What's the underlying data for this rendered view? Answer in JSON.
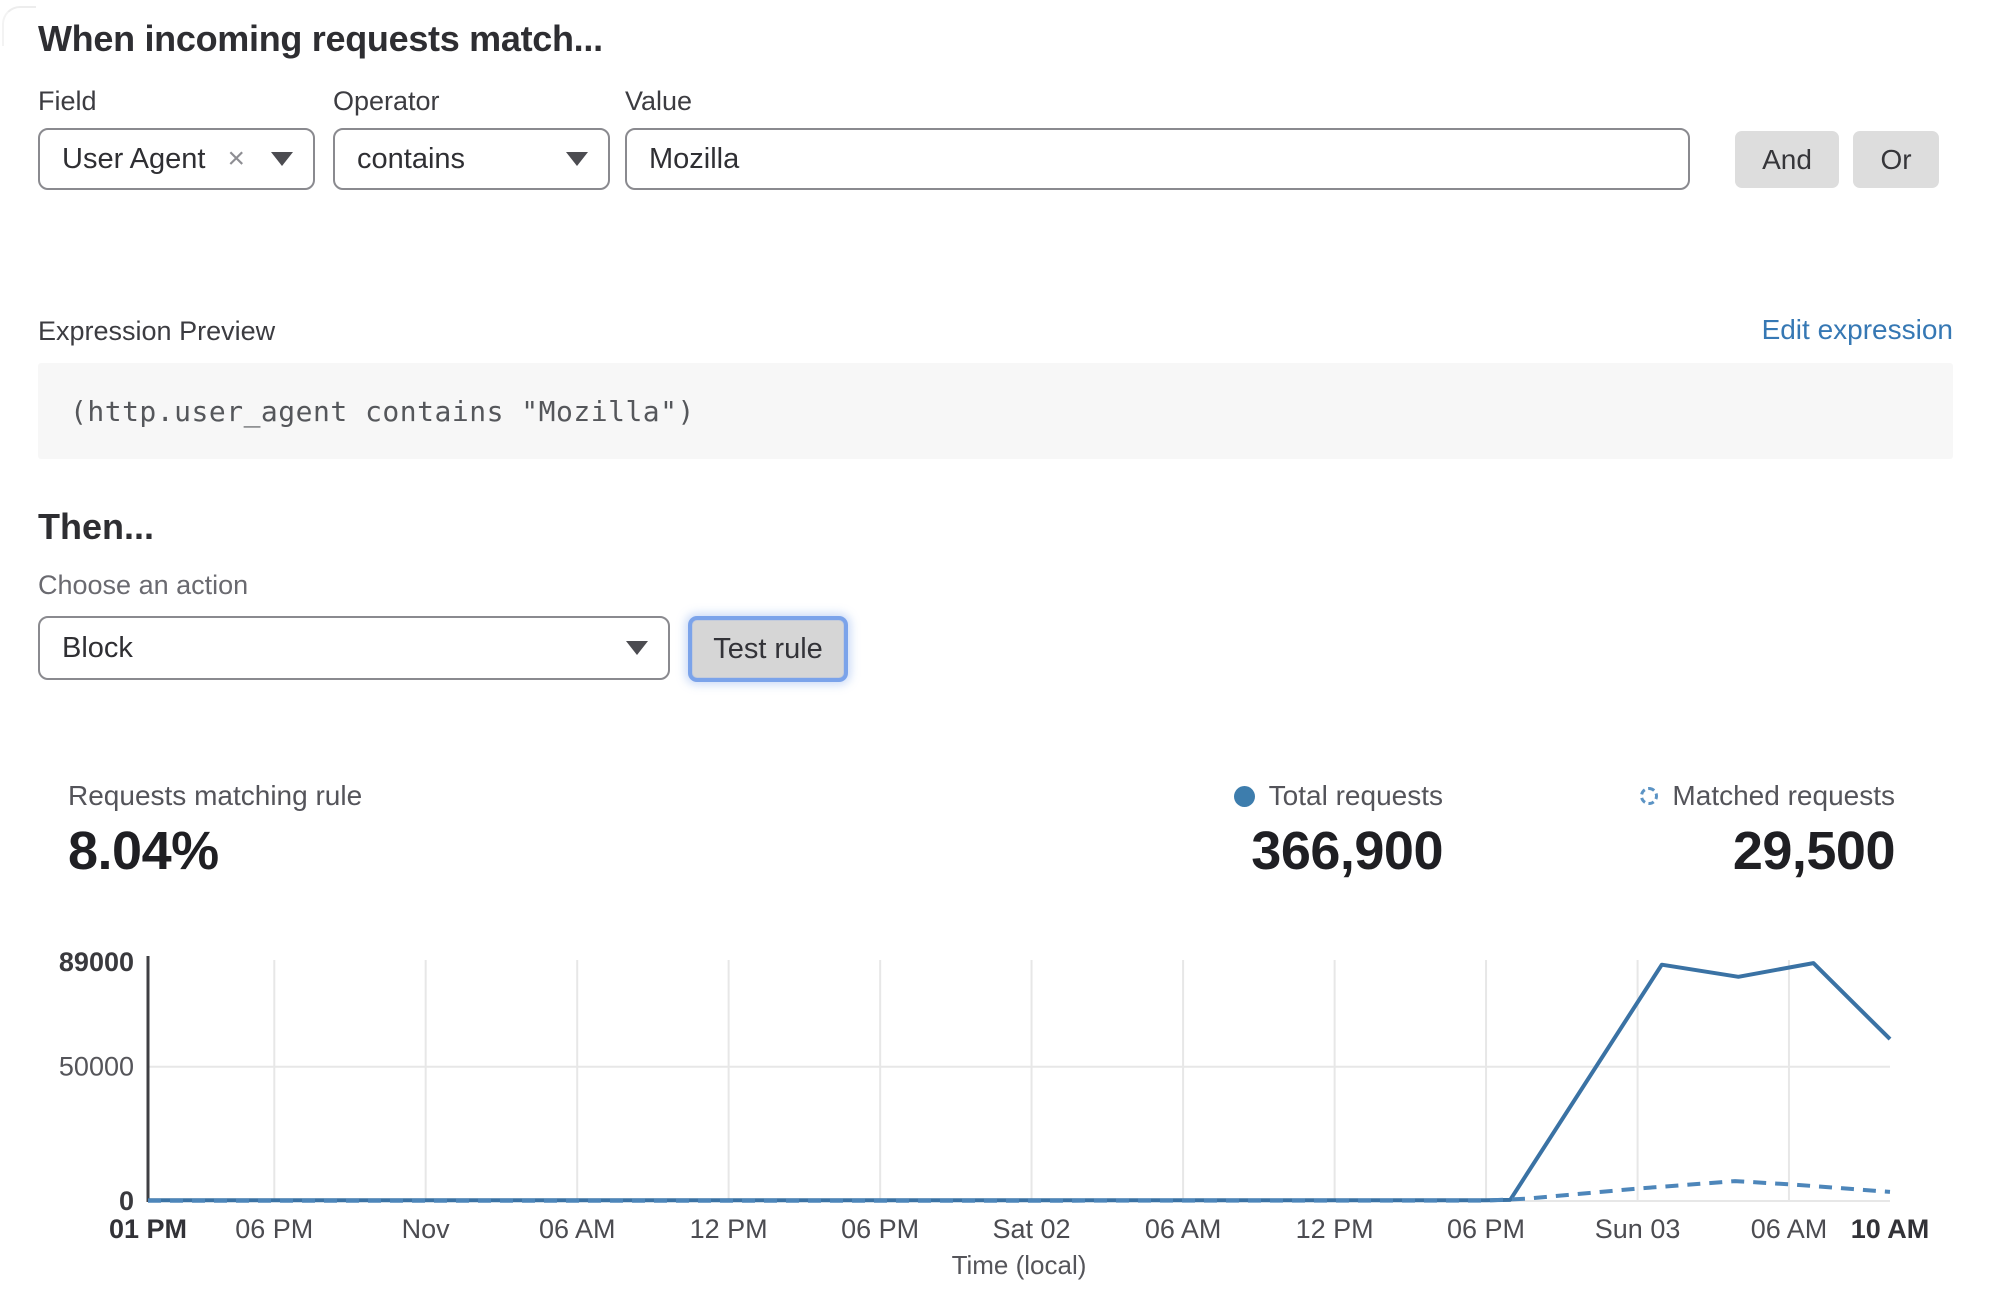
{
  "page": {
    "heading": "When incoming requests match..."
  },
  "rule": {
    "field": {
      "label": "Field",
      "value": "User Agent"
    },
    "operator": {
      "label": "Operator",
      "value": "contains"
    },
    "value": {
      "label": "Value",
      "value": "Mozilla"
    },
    "and_label": "And",
    "or_label": "Or"
  },
  "expression": {
    "label": "Expression Preview",
    "edit_link": "Edit expression",
    "code": "(http.user_agent contains \"Mozilla\")"
  },
  "action": {
    "heading": "Then...",
    "choose_label": "Choose an action",
    "selected": "Block",
    "test_button": "Test rule"
  },
  "stats": {
    "matching_rule": {
      "label": "Requests matching rule",
      "value": "8.04%"
    },
    "total": {
      "label": "Total requests",
      "value": "366,900",
      "marker": "filled-dot",
      "marker_color": "#3d7dad"
    },
    "matched": {
      "label": "Matched requests",
      "value": "29,500",
      "marker": "dashed-circle",
      "marker_color": "#5b93c4"
    }
  },
  "chart_data": {
    "type": "line",
    "xlabel": "Time (local)",
    "ylabel": "",
    "ylim": [
      0,
      89000
    ],
    "grid": true,
    "legend_position": "top-right-above-chart",
    "yticks": [
      {
        "value": 0,
        "label": "0",
        "bold": true
      },
      {
        "value": 50000,
        "label": "50000",
        "bold": false
      },
      {
        "value": 89000,
        "label": "89000",
        "bold": true
      }
    ],
    "xticks": [
      {
        "pos": 0.0,
        "label": "01 PM",
        "bold": true
      },
      {
        "pos": 0.0725,
        "label": "06 PM",
        "bold": false
      },
      {
        "pos": 0.1594,
        "label": "Nov",
        "bold": false
      },
      {
        "pos": 0.2464,
        "label": "06 AM",
        "bold": false
      },
      {
        "pos": 0.3333,
        "label": "12 PM",
        "bold": false
      },
      {
        "pos": 0.4203,
        "label": "06 PM",
        "bold": false
      },
      {
        "pos": 0.5072,
        "label": "Sat 02",
        "bold": false
      },
      {
        "pos": 0.5942,
        "label": "06 AM",
        "bold": false
      },
      {
        "pos": 0.6812,
        "label": "12 PM",
        "bold": false
      },
      {
        "pos": 0.7681,
        "label": "06 PM",
        "bold": false
      },
      {
        "pos": 0.8551,
        "label": "Sun 03",
        "bold": false
      },
      {
        "pos": 0.942,
        "label": "06 AM",
        "bold": false
      },
      {
        "pos": 1.0,
        "label": "10 AM",
        "bold": true
      }
    ],
    "series": [
      {
        "name": "Total requests",
        "style": "solid",
        "color": "#3a72a4",
        "points": [
          [
            0,
            250
          ],
          [
            0.25,
            250
          ],
          [
            0.5,
            250
          ],
          [
            0.7681,
            250
          ],
          [
            0.782,
            400
          ],
          [
            0.869,
            88000
          ],
          [
            0.913,
            83500
          ],
          [
            0.956,
            88600
          ],
          [
            1,
            60300
          ]
        ]
      },
      {
        "name": "Matched requests",
        "style": "dashed",
        "color": "#4d86ba",
        "points": [
          [
            0,
            120
          ],
          [
            0.25,
            120
          ],
          [
            0.5,
            120
          ],
          [
            0.7681,
            150
          ],
          [
            0.792,
            900
          ],
          [
            0.855,
            4600
          ],
          [
            0.911,
            7400
          ],
          [
            0.945,
            6100
          ],
          [
            1,
            3400
          ]
        ]
      }
    ]
  }
}
